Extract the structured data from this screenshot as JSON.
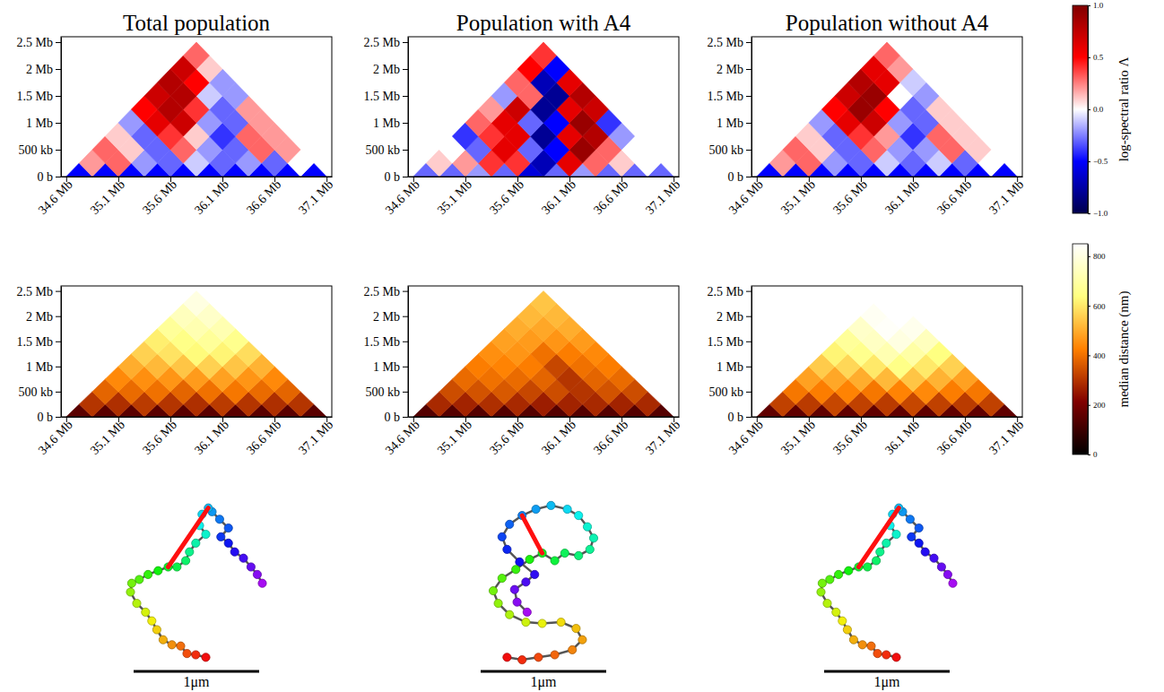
{
  "chart_data": {
    "type": "heatmap",
    "columns": [
      "Total population",
      "Population with A4",
      "Population without A4"
    ],
    "xlim": [
      34.55,
      37.15
    ],
    "xticks": [
      {
        "value": 34.6,
        "label": "34.6 Mb"
      },
      {
        "value": 35.1,
        "label": "35.1 Mb"
      },
      {
        "value": 35.6,
        "label": "35.6 Mb"
      },
      {
        "value": 36.1,
        "label": "36.1 Mb"
      },
      {
        "value": 36.6,
        "label": "36.6 Mb"
      },
      {
        "value": 37.1,
        "label": "37.1 Mb"
      }
    ],
    "ylim": [
      0,
      2.6
    ],
    "yticks": [
      {
        "value": 0,
        "label": "0 b"
      },
      {
        "value": 0.5,
        "label": "500 kb"
      },
      {
        "value": 1,
        "label": "1 Mb"
      },
      {
        "value": 1.5,
        "label": "1.5 Mb"
      },
      {
        "value": 2,
        "label": "2 Mb"
      },
      {
        "value": 2.5,
        "label": "2.5 Mb"
      }
    ],
    "bins": [
      34.6,
      34.85,
      35.1,
      35.35,
      35.6,
      35.85,
      36.1,
      36.35,
      36.6,
      36.85,
      37.1
    ],
    "rows": [
      {
        "colorbar": {
          "label": "log-spectral ratio Λ",
          "range": [
            -1,
            1
          ],
          "ticks": [
            {
              "value": -1,
              "label": "−1.0"
            },
            {
              "value": -0.5,
              "label": "−0.5"
            },
            {
              "value": 0,
              "label": "0.0"
            },
            {
              "value": 0.5,
              "label": "0.5"
            },
            {
              "value": 1,
              "label": "1.0"
            }
          ]
        },
        "panels": [
          {
            "values": [
              [
                -0.5,
                -0.5,
                -0.5,
                -0.5,
                -0.5,
                -0.5,
                -0.5,
                -0.5,
                -0.5,
                -0.5
              ],
              [
                0.2,
                0.3,
                -0.2,
                -0.3,
                -0.1,
                -0.3,
                -0.2,
                -0.3,
                0.0
              ],
              [
                0.3,
                0.1,
                -0.3,
                0.3,
                -0.2,
                -0.3,
                0.3,
                0.2
              ],
              [
                0.1,
                -0.3,
                0.4,
                0.1,
                -0.4,
                0.3,
                0.2
              ],
              [
                -0.2,
                0.6,
                0.7,
                -0.2,
                -0.3,
                0.2
              ],
              [
                0.5,
                0.8,
                0.4,
                -0.3,
                0.2
              ],
              [
                0.7,
                0.8,
                -0.1,
                -0.2
              ],
              [
                0.8,
                0.5,
                -0.2
              ],
              [
                0.7,
                0.1
              ],
              [
                0.3
              ]
            ]
          },
          {
            "values": [
              [
                -0.3,
                -0.3,
                -0.2,
                -0.3,
                -0.6,
                -0.3,
                -0.2,
                -0.3,
                -0.3,
                -0.3
              ],
              [
                0.1,
                0.2,
                0.4,
                0.4,
                -0.7,
                0.6,
                0.3,
                0.1,
                0.0
              ],
              [
                0.0,
                -0.3,
                0.6,
                -0.3,
                -0.5,
                0.9,
                0.3,
                0.0
              ],
              [
                -0.4,
                0.4,
                0.6,
                -0.8,
                0.6,
                0.8,
                -0.2
              ],
              [
                0.3,
                0.6,
                -0.3,
                -0.5,
                0.9,
                -0.4
              ],
              [
                0.2,
                0.7,
                -0.8,
                0.6,
                0.7
              ],
              [
                -0.2,
                0.3,
                -0.8,
                0.8
              ],
              [
                0.3,
                -0.7,
                0.6
              ],
              [
                0.5,
                -0.5
              ],
              [
                0.4
              ]
            ]
          },
          {
            "values": [
              [
                -0.5,
                -0.5,
                -0.5,
                -0.5,
                -0.5,
                -0.5,
                -0.5,
                -0.5,
                -0.5,
                -0.5
              ],
              [
                0.2,
                0.3,
                -0.2,
                -0.3,
                -0.1,
                -0.3,
                -0.1,
                -0.3,
                0.0
              ],
              [
                0.3,
                0.1,
                -0.3,
                0.3,
                -0.2,
                -0.2,
                0.3,
                0.1
              ],
              [
                0.1,
                -0.3,
                0.4,
                0.2,
                -0.4,
                0.3,
                0.1
              ],
              [
                -0.2,
                0.6,
                0.7,
                -0.2,
                -0.3,
                0.1
              ],
              [
                0.5,
                0.9,
                0.5,
                -0.3,
                0.1
              ],
              [
                0.7,
                0.9,
                0.0,
                -0.2
              ],
              [
                0.8,
                0.6,
                -0.1
              ],
              [
                0.6,
                0.2
              ],
              [
                0.3
              ]
            ]
          }
        ]
      },
      {
        "colorbar": {
          "label": "median distance (nm)",
          "range": [
            0,
            850
          ],
          "ticks": [
            0,
            200,
            400,
            600,
            800
          ]
        },
        "panels": [
          {
            "values": [
              [
                150,
                150,
                150,
                150,
                150,
                150,
                150,
                150,
                150,
                150
              ],
              [
                300,
                290,
                310,
                300,
                290,
                310,
                300,
                290,
                300
              ],
              [
                380,
                390,
                400,
                380,
                400,
                410,
                390,
                380
              ],
              [
                440,
                450,
                460,
                470,
                480,
                460,
                440
              ],
              [
                500,
                520,
                540,
                560,
                540,
                510
              ],
              [
                560,
                590,
                630,
                620,
                580
              ],
              [
                610,
                650,
                680,
                660
              ],
              [
                680,
                720,
                720
              ],
              [
                740,
                760
              ],
              [
                800
              ]
            ]
          },
          {
            "values": [
              [
                140,
                140,
                140,
                140,
                140,
                140,
                140,
                140,
                140,
                140
              ],
              [
                280,
                270,
                290,
                280,
                260,
                270,
                280,
                270,
                280
              ],
              [
                340,
                350,
                360,
                330,
                340,
                300,
                350,
                340
              ],
              [
                390,
                400,
                390,
                380,
                300,
                380,
                390
              ],
              [
                420,
                430,
                420,
                330,
                400,
                420
              ],
              [
                450,
                460,
                400,
                420,
                440
              ],
              [
                480,
                470,
                460,
                470
              ],
              [
                500,
                490,
                500
              ],
              [
                520,
                520
              ],
              [
                540
              ]
            ]
          },
          {
            "values": [
              [
                160,
                160,
                160,
                160,
                160,
                160,
                160,
                160,
                160,
                160
              ],
              [
                320,
                310,
                330,
                320,
                310,
                330,
                320,
                310,
                320
              ],
              [
                410,
                420,
                430,
                410,
                430,
                440,
                420,
                410
              ],
              [
                480,
                490,
                500,
                520,
                540,
                510,
                480
              ],
              [
                550,
                570,
                600,
                650,
                600,
                560
              ],
              [
                620,
                660,
                720,
                700,
                640
              ],
              [
                680,
                750,
                800,
                740
              ],
              [
                760,
                840,
                820
              ],
              [
                830,
                860
              ],
              [
                880
              ]
            ]
          }
        ]
      }
    ],
    "structures": [
      {
        "beads": [
          [
            1.04,
            0.64
          ],
          [
            1.0,
            0.57
          ],
          [
            0.95,
            0.51
          ],
          [
            0.89,
            0.44
          ],
          [
            0.82,
            0.39
          ],
          [
            0.77,
            0.32
          ],
          [
            0.71,
            0.27
          ],
          [
            0.77,
            0.2
          ],
          [
            0.7,
            0.13
          ],
          [
            0.64,
            0.07
          ],
          [
            0.61,
            0.04
          ],
          [
            0.56,
            0.09
          ],
          [
            0.54,
            0.18
          ],
          [
            0.59,
            0.25
          ],
          [
            0.51,
            0.32
          ],
          [
            0.46,
            0.39
          ],
          [
            0.43,
            0.46
          ],
          [
            0.36,
            0.51
          ],
          [
            0.29,
            0.51
          ],
          [
            0.21,
            0.54
          ],
          [
            0.13,
            0.57
          ],
          [
            0.06,
            0.61
          ],
          [
            0.0,
            0.64
          ],
          [
            -0.01,
            0.71
          ],
          [
            0.04,
            0.8
          ],
          [
            0.11,
            0.87
          ],
          [
            0.16,
            0.94
          ],
          [
            0.2,
            1.01
          ],
          [
            0.25,
            1.09
          ],
          [
            0.32,
            1.13
          ],
          [
            0.39,
            1.14
          ],
          [
            0.44,
            1.2
          ],
          [
            0.51,
            1.21
          ],
          [
            0.59,
            1.23
          ]
        ],
        "highlight": [
          10,
          18
        ],
        "scale_bar": {
          "value": 1,
          "label": "1μm"
        }
      },
      {
        "beads": [
          [
            0.27,
            0.91
          ],
          [
            0.19,
            0.83
          ],
          [
            0.17,
            0.73
          ],
          [
            0.26,
            0.67
          ],
          [
            0.33,
            0.61
          ],
          [
            0.21,
            0.51
          ],
          [
            0.11,
            0.41
          ],
          [
            0.07,
            0.31
          ],
          [
            0.13,
            0.21
          ],
          [
            0.23,
            0.14
          ],
          [
            0.34,
            0.09
          ],
          [
            0.46,
            0.06
          ],
          [
            0.59,
            0.09
          ],
          [
            0.68,
            0.14
          ],
          [
            0.75,
            0.23
          ],
          [
            0.8,
            0.32
          ],
          [
            0.77,
            0.41
          ],
          [
            0.68,
            0.46
          ],
          [
            0.57,
            0.44
          ],
          [
            0.49,
            0.5
          ],
          [
            0.39,
            0.44
          ],
          [
            0.29,
            0.49
          ],
          [
            0.18,
            0.57
          ],
          [
            0.07,
            0.64
          ],
          [
            0.0,
            0.74
          ],
          [
            0.04,
            0.84
          ],
          [
            0.13,
            0.93
          ],
          [
            0.26,
            0.99
          ],
          [
            0.39,
            1.0
          ],
          [
            0.54,
            0.99
          ],
          [
            0.66,
            1.04
          ],
          [
            0.71,
            1.13
          ],
          [
            0.63,
            1.21
          ],
          [
            0.49,
            1.25
          ],
          [
            0.36,
            1.27
          ],
          [
            0.23,
            1.29
          ],
          [
            0.11,
            1.27
          ]
        ],
        "highlight": [
          9,
          20
        ],
        "scale_bar": {
          "value": 1,
          "label": "1μm"
        }
      },
      {
        "beads": [
          [
            1.04,
            0.64
          ],
          [
            1.0,
            0.57
          ],
          [
            0.95,
            0.51
          ],
          [
            0.89,
            0.44
          ],
          [
            0.82,
            0.39
          ],
          [
            0.77,
            0.32
          ],
          [
            0.71,
            0.27
          ],
          [
            0.77,
            0.2
          ],
          [
            0.7,
            0.13
          ],
          [
            0.64,
            0.07
          ],
          [
            0.61,
            0.04
          ],
          [
            0.56,
            0.09
          ],
          [
            0.54,
            0.18
          ],
          [
            0.59,
            0.25
          ],
          [
            0.51,
            0.32
          ],
          [
            0.46,
            0.39
          ],
          [
            0.43,
            0.46
          ],
          [
            0.36,
            0.51
          ],
          [
            0.29,
            0.51
          ],
          [
            0.21,
            0.54
          ],
          [
            0.13,
            0.57
          ],
          [
            0.06,
            0.61
          ],
          [
            0.0,
            0.64
          ],
          [
            -0.01,
            0.71
          ],
          [
            0.04,
            0.8
          ],
          [
            0.11,
            0.87
          ],
          [
            0.16,
            0.94
          ],
          [
            0.2,
            1.01
          ],
          [
            0.25,
            1.09
          ],
          [
            0.32,
            1.13
          ],
          [
            0.39,
            1.14
          ],
          [
            0.44,
            1.2
          ],
          [
            0.51,
            1.21
          ],
          [
            0.59,
            1.23
          ]
        ],
        "highlight": [
          10,
          18
        ],
        "scale_bar": {
          "value": 1,
          "label": "1μm"
        }
      }
    ]
  }
}
